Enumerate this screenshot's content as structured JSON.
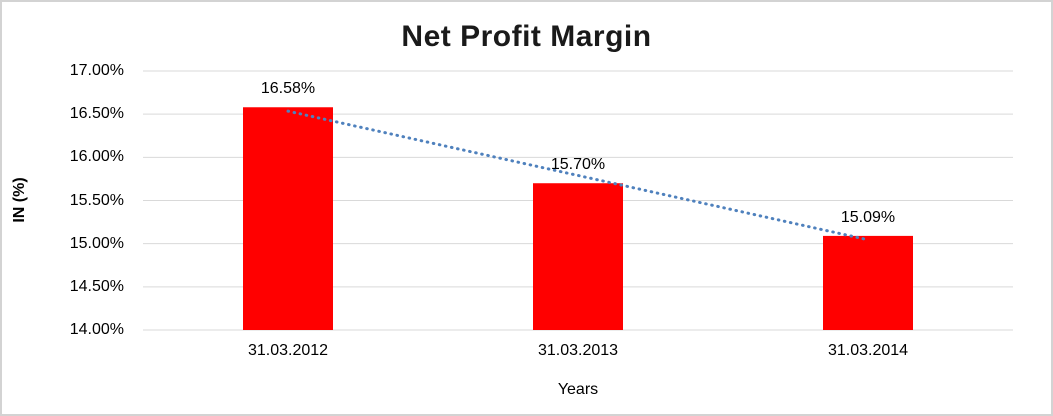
{
  "chart_data": {
    "type": "bar",
    "title": "Net Profit Margin",
    "categories": [
      "31.03.2012",
      "31.03.2013",
      "31.03.2014"
    ],
    "values": [
      16.58,
      15.7,
      15.09
    ],
    "data_labels": [
      "16.58%",
      "15.70%",
      "15.09%"
    ],
    "xlabel": "Years",
    "ylabel": "IN (%)",
    "ylim": [
      14,
      17
    ],
    "ytick_step": 0.5,
    "ytick_labels": [
      "17.00%",
      "16.50%",
      "16.00%",
      "15.50%",
      "15.00%",
      "14.50%",
      "14.00%"
    ],
    "grid": true,
    "legend": "none",
    "bars_start_at": 14,
    "bar_color": "#ff0000",
    "gridline_color": "#d9d9d9",
    "axis_line_color": "#d9d9d9",
    "chart_border_color": "#d3d3d3",
    "background_color": "#ffffff",
    "trendline": {
      "type": "linear",
      "style": "dotted",
      "color": "#4f81bd"
    }
  }
}
